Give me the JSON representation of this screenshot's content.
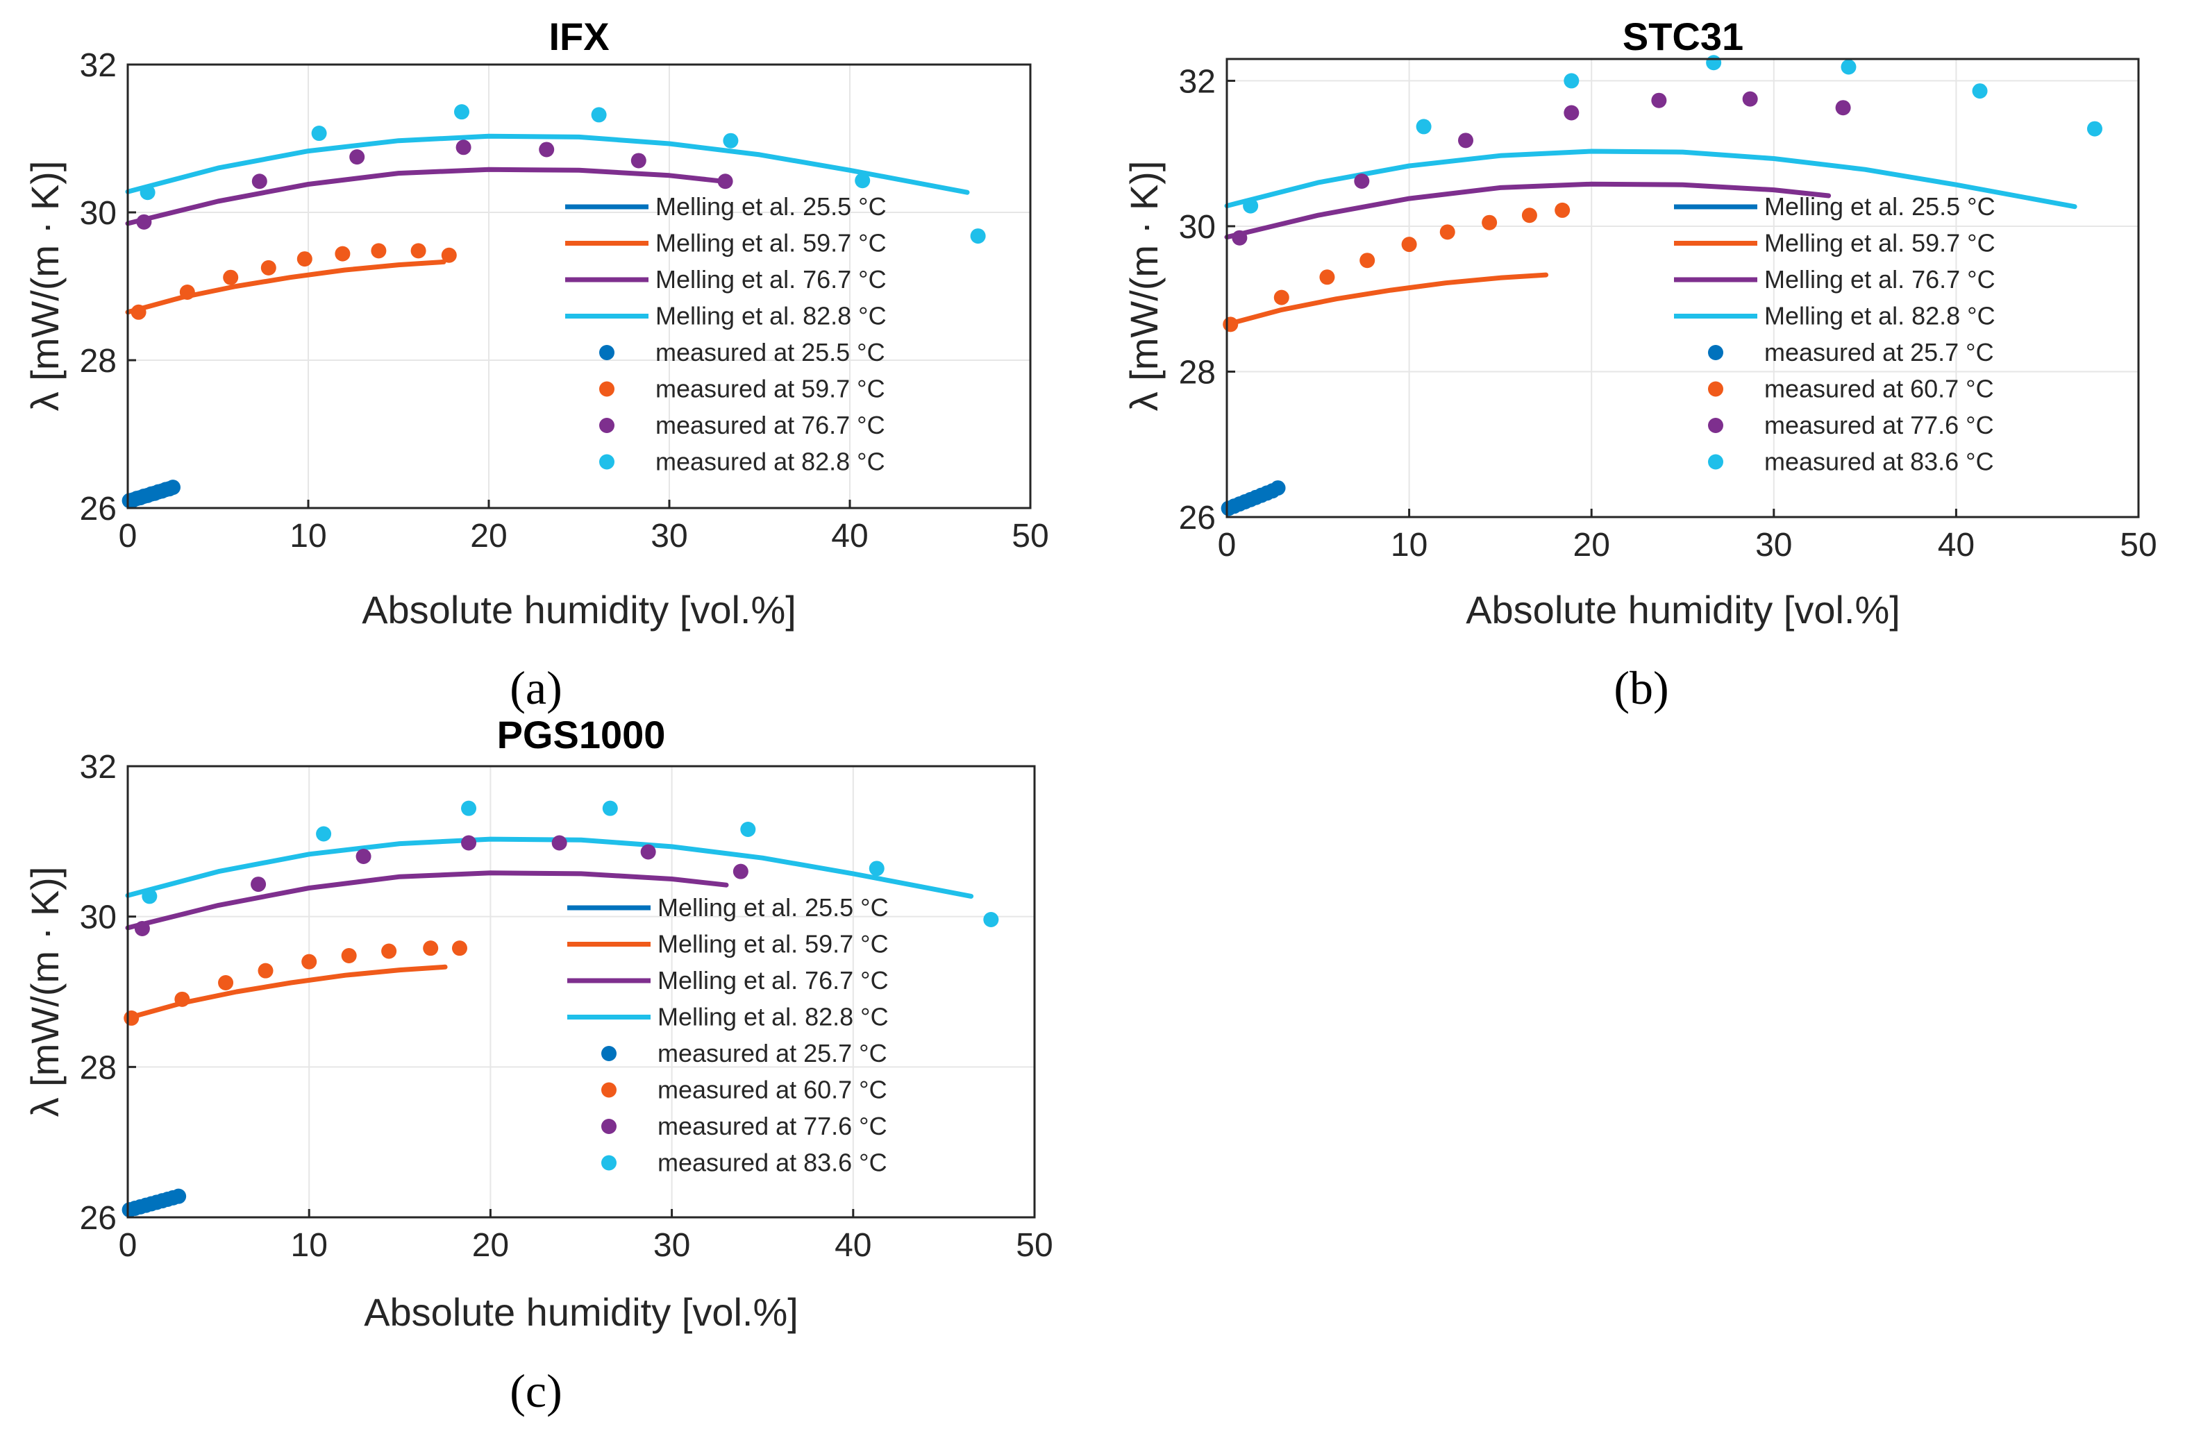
{
  "figure": {
    "panels": [
      {
        "id": "a",
        "caption": "(a)"
      },
      {
        "id": "b",
        "caption": "(b)"
      },
      {
        "id": "c",
        "caption": "(c)"
      }
    ]
  },
  "colors": {
    "blue": "#0072BD",
    "orange": "#F05A1A",
    "purple": "#7E2F8E",
    "cyan": "#1FBFEA",
    "axis": "#262626",
    "grid": "#e6e6e6"
  },
  "chart_data": [
    {
      "type": "line+scatter",
      "title": "IFX",
      "xlabel": "Absolute humidity [vol.%]",
      "ylabel": "λ [mW/(m · K)]",
      "xlim": [
        0,
        50
      ],
      "ylim": [
        26,
        32
      ],
      "xticks": [
        0,
        10,
        20,
        30,
        40,
        50
      ],
      "yticks": [
        26,
        28,
        30,
        32
      ],
      "grid": true,
      "legend_position": "right",
      "series": [
        {
          "name": "Melling et al. 25.5 °C",
          "kind": "line",
          "color": "blue",
          "x": [
            0,
            2.2
          ],
          "y": [
            26.1,
            26.3
          ]
        },
        {
          "name": "Melling et al. 59.7 °C",
          "kind": "line",
          "color": "orange",
          "x": [
            0,
            3,
            6,
            9,
            12,
            15,
            17.5
          ],
          "y": [
            28.65,
            28.85,
            29.0,
            29.12,
            29.22,
            29.29,
            29.33
          ]
        },
        {
          "name": "Melling et al. 76.7 °C",
          "kind": "line",
          "color": "purple",
          "x": [
            0,
            5,
            10,
            15,
            20,
            25,
            30,
            33
          ],
          "y": [
            29.85,
            30.15,
            30.38,
            30.53,
            30.58,
            30.57,
            30.5,
            30.42
          ]
        },
        {
          "name": "Melling et al. 82.8 °C",
          "kind": "line",
          "color": "cyan",
          "x": [
            0,
            5,
            10,
            15,
            20,
            25,
            30,
            35,
            40,
            46.5
          ],
          "y": [
            30.28,
            30.6,
            30.83,
            30.97,
            31.03,
            31.02,
            30.93,
            30.78,
            30.57,
            30.27
          ]
        },
        {
          "name": "measured at 25.5 °C",
          "kind": "scatter",
          "color": "blue",
          "x": [
            0.1,
            0.3,
            0.5,
            0.7,
            0.9,
            1.1,
            1.3,
            1.5,
            1.7,
            1.9,
            2.1,
            2.3,
            2.5
          ],
          "y": [
            26.1,
            26.11,
            26.13,
            26.14,
            26.16,
            26.17,
            26.19,
            26.2,
            26.22,
            26.23,
            26.25,
            26.26,
            26.28
          ]
        },
        {
          "name": "measured at 59.7 °C",
          "kind": "scatter",
          "color": "orange",
          "x": [
            0.6,
            3.3,
            5.7,
            7.8,
            9.8,
            11.9,
            13.9,
            16.1,
            17.8
          ],
          "y": [
            28.65,
            28.92,
            29.12,
            29.25,
            29.37,
            29.44,
            29.48,
            29.48,
            29.42
          ]
        },
        {
          "name": "measured at 76.7 °C",
          "kind": "scatter",
          "color": "purple",
          "x": [
            0.9,
            7.3,
            12.7,
            18.6,
            23.2,
            28.3,
            33.1
          ],
          "y": [
            29.87,
            30.42,
            30.75,
            30.88,
            30.85,
            30.7,
            30.42
          ]
        },
        {
          "name": "measured at 82.8 °C",
          "kind": "scatter",
          "color": "cyan",
          "x": [
            1.1,
            10.6,
            18.5,
            26.1,
            33.4,
            40.7,
            47.1
          ],
          "y": [
            30.27,
            31.07,
            31.36,
            31.32,
            30.97,
            30.43,
            29.68
          ]
        }
      ]
    },
    {
      "type": "line+scatter",
      "title": "STC31",
      "xlabel": "Absolute humidity [vol.%]",
      "ylabel": "λ [mW/(m · K)]",
      "xlim": [
        0,
        50
      ],
      "ylim": [
        26,
        32.3
      ],
      "xticks": [
        0,
        10,
        20,
        30,
        40,
        50
      ],
      "yticks": [
        26,
        28,
        30,
        32
      ],
      "grid": true,
      "legend_position": "right",
      "series": [
        {
          "name": "Melling et al. 25.5 °C",
          "kind": "line",
          "color": "blue",
          "x": [
            0,
            2.2
          ],
          "y": [
            26.1,
            26.3
          ]
        },
        {
          "name": "Melling et al. 59.7 °C",
          "kind": "line",
          "color": "orange",
          "x": [
            0,
            3,
            6,
            9,
            12,
            15,
            17.5
          ],
          "y": [
            28.65,
            28.85,
            29.0,
            29.12,
            29.22,
            29.29,
            29.33
          ]
        },
        {
          "name": "Melling et al. 76.7 °C",
          "kind": "line",
          "color": "purple",
          "x": [
            0,
            5,
            10,
            15,
            20,
            25,
            30,
            33
          ],
          "y": [
            29.85,
            30.15,
            30.38,
            30.53,
            30.58,
            30.57,
            30.5,
            30.42
          ]
        },
        {
          "name": "Melling et al. 82.8 °C",
          "kind": "line",
          "color": "cyan",
          "x": [
            0,
            5,
            10,
            15,
            20,
            25,
            30,
            35,
            40,
            46.5
          ],
          "y": [
            30.28,
            30.6,
            30.83,
            30.97,
            31.03,
            31.02,
            30.93,
            30.78,
            30.57,
            30.27
          ]
        },
        {
          "name": "measured at 25.7 °C",
          "kind": "scatter",
          "color": "blue",
          "x": [
            0.1,
            0.4,
            0.7,
            1.0,
            1.3,
            1.6,
            1.9,
            2.2,
            2.5,
            2.8
          ],
          "y": [
            26.12,
            26.15,
            26.18,
            26.21,
            26.24,
            26.27,
            26.3,
            26.33,
            26.36,
            26.4
          ]
        },
        {
          "name": "measured at 60.7 °C",
          "kind": "scatter",
          "color": "orange",
          "x": [
            0.2,
            3.0,
            5.5,
            7.7,
            10.0,
            12.1,
            14.4,
            16.6,
            18.4
          ],
          "y": [
            28.65,
            29.02,
            29.3,
            29.53,
            29.75,
            29.92,
            30.05,
            30.15,
            30.22
          ]
        },
        {
          "name": "measured at 77.6 °C",
          "kind": "scatter",
          "color": "purple",
          "x": [
            0.7,
            7.4,
            13.1,
            18.9,
            23.7,
            28.7,
            33.8
          ],
          "y": [
            29.84,
            30.62,
            31.18,
            31.56,
            31.73,
            31.75,
            31.63
          ]
        },
        {
          "name": "measured at 83.6 °C",
          "kind": "scatter",
          "color": "cyan",
          "x": [
            1.3,
            10.8,
            18.9,
            26.7,
            34.1,
            41.3,
            47.6
          ],
          "y": [
            30.28,
            31.37,
            32.0,
            32.25,
            32.19,
            31.86,
            31.34
          ]
        }
      ]
    },
    {
      "type": "line+scatter",
      "title": "PGS1000",
      "xlabel": "Absolute humidity [vol.%]",
      "ylabel": "λ [mW/(m · K)]",
      "xlim": [
        0,
        50
      ],
      "ylim": [
        26,
        32
      ],
      "xticks": [
        0,
        10,
        20,
        30,
        40,
        50
      ],
      "yticks": [
        26,
        28,
        30,
        32
      ],
      "grid": true,
      "legend_position": "right",
      "series": [
        {
          "name": "Melling et al. 25.5 °C",
          "kind": "line",
          "color": "blue",
          "x": [
            0,
            2.2
          ],
          "y": [
            26.1,
            26.3
          ]
        },
        {
          "name": "Melling et al. 59.7 °C",
          "kind": "line",
          "color": "orange",
          "x": [
            0,
            3,
            6,
            9,
            12,
            15,
            17.5
          ],
          "y": [
            28.65,
            28.85,
            29.0,
            29.12,
            29.22,
            29.29,
            29.33
          ]
        },
        {
          "name": "Melling et al. 76.7 °C",
          "kind": "line",
          "color": "purple",
          "x": [
            0,
            5,
            10,
            15,
            20,
            25,
            30,
            33
          ],
          "y": [
            29.85,
            30.15,
            30.38,
            30.53,
            30.58,
            30.57,
            30.5,
            30.42
          ]
        },
        {
          "name": "Melling et al. 82.8 °C",
          "kind": "line",
          "color": "cyan",
          "x": [
            0,
            5,
            10,
            15,
            20,
            25,
            30,
            35,
            40,
            46.5
          ],
          "y": [
            30.28,
            30.6,
            30.83,
            30.97,
            31.03,
            31.02,
            30.93,
            30.78,
            30.57,
            30.27
          ]
        },
        {
          "name": "measured at 25.7 °C",
          "kind": "scatter",
          "color": "blue",
          "x": [
            0.1,
            0.4,
            0.7,
            1.0,
            1.3,
            1.6,
            1.9,
            2.2,
            2.5,
            2.8
          ],
          "y": [
            26.1,
            26.12,
            26.14,
            26.16,
            26.18,
            26.2,
            26.22,
            26.24,
            26.26,
            26.28
          ]
        },
        {
          "name": "measured at 60.7 °C",
          "kind": "scatter",
          "color": "orange",
          "x": [
            0.2,
            3.0,
            5.4,
            7.6,
            10.0,
            12.2,
            14.4,
            16.7,
            18.3
          ],
          "y": [
            28.65,
            28.9,
            29.12,
            29.28,
            29.4,
            29.48,
            29.54,
            29.58,
            29.58
          ]
        },
        {
          "name": "measured at 77.6 °C",
          "kind": "scatter",
          "color": "purple",
          "x": [
            0.8,
            7.2,
            13.0,
            18.8,
            23.8,
            28.7,
            33.8
          ],
          "y": [
            29.84,
            30.43,
            30.8,
            30.98,
            30.98,
            30.86,
            30.6
          ]
        },
        {
          "name": "measured at 83.6 °C",
          "kind": "scatter",
          "color": "cyan",
          "x": [
            1.2,
            10.8,
            18.8,
            26.6,
            34.2,
            41.3,
            47.6
          ],
          "y": [
            30.27,
            31.1,
            31.44,
            31.44,
            31.16,
            30.64,
            29.96
          ]
        }
      ]
    }
  ]
}
